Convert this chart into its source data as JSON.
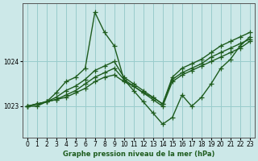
{
  "xlabel": "Graphe pression niveau de la mer (hPa)",
  "bg_color": "#cce8e8",
  "grid_color": "#99cccc",
  "line_color": "#1e5c1e",
  "marker": "+",
  "markersize": 4,
  "linewidth": 1.0,
  "ylim": [
    1022.3,
    1025.3
  ],
  "xlim": [
    -0.5,
    23.5
  ],
  "yticks": [
    1023,
    1024
  ],
  "xticks": [
    0,
    1,
    2,
    3,
    4,
    5,
    6,
    7,
    8,
    9,
    10,
    11,
    12,
    13,
    14,
    15,
    16,
    17,
    18,
    19,
    20,
    21,
    22,
    23
  ],
  "series": [
    [
      1023.0,
      1023.0,
      1023.1,
      1023.3,
      1023.55,
      1023.65,
      1023.85,
      1025.1,
      1024.65,
      1024.35,
      1023.6,
      1023.35,
      1023.1,
      1022.85,
      1022.6,
      1022.75,
      1023.25,
      1023.0,
      1023.2,
      1023.5,
      1023.85,
      1024.05,
      1024.35,
      1024.55
    ],
    [
      1023.0,
      1023.05,
      1023.1,
      1023.2,
      1023.35,
      1023.45,
      1023.6,
      1023.8,
      1023.9,
      1024.0,
      1023.65,
      1023.5,
      1023.35,
      1023.2,
      1023.05,
      1023.65,
      1023.85,
      1023.95,
      1024.05,
      1024.2,
      1024.35,
      1024.45,
      1024.55,
      1024.65
    ],
    [
      1023.0,
      1023.05,
      1023.1,
      1023.15,
      1023.25,
      1023.35,
      1023.5,
      1023.65,
      1023.75,
      1023.85,
      1023.6,
      1023.45,
      1023.3,
      1023.2,
      1023.05,
      1023.6,
      1023.75,
      1023.85,
      1023.95,
      1024.1,
      1024.2,
      1024.3,
      1024.4,
      1024.5
    ],
    [
      1023.0,
      1023.05,
      1023.1,
      1023.15,
      1023.2,
      1023.3,
      1023.4,
      1023.55,
      1023.65,
      1023.7,
      1023.55,
      1023.45,
      1023.3,
      1023.15,
      1023.0,
      1023.55,
      1023.7,
      1023.8,
      1023.9,
      1024.0,
      1024.1,
      1024.2,
      1024.3,
      1024.45
    ]
  ]
}
